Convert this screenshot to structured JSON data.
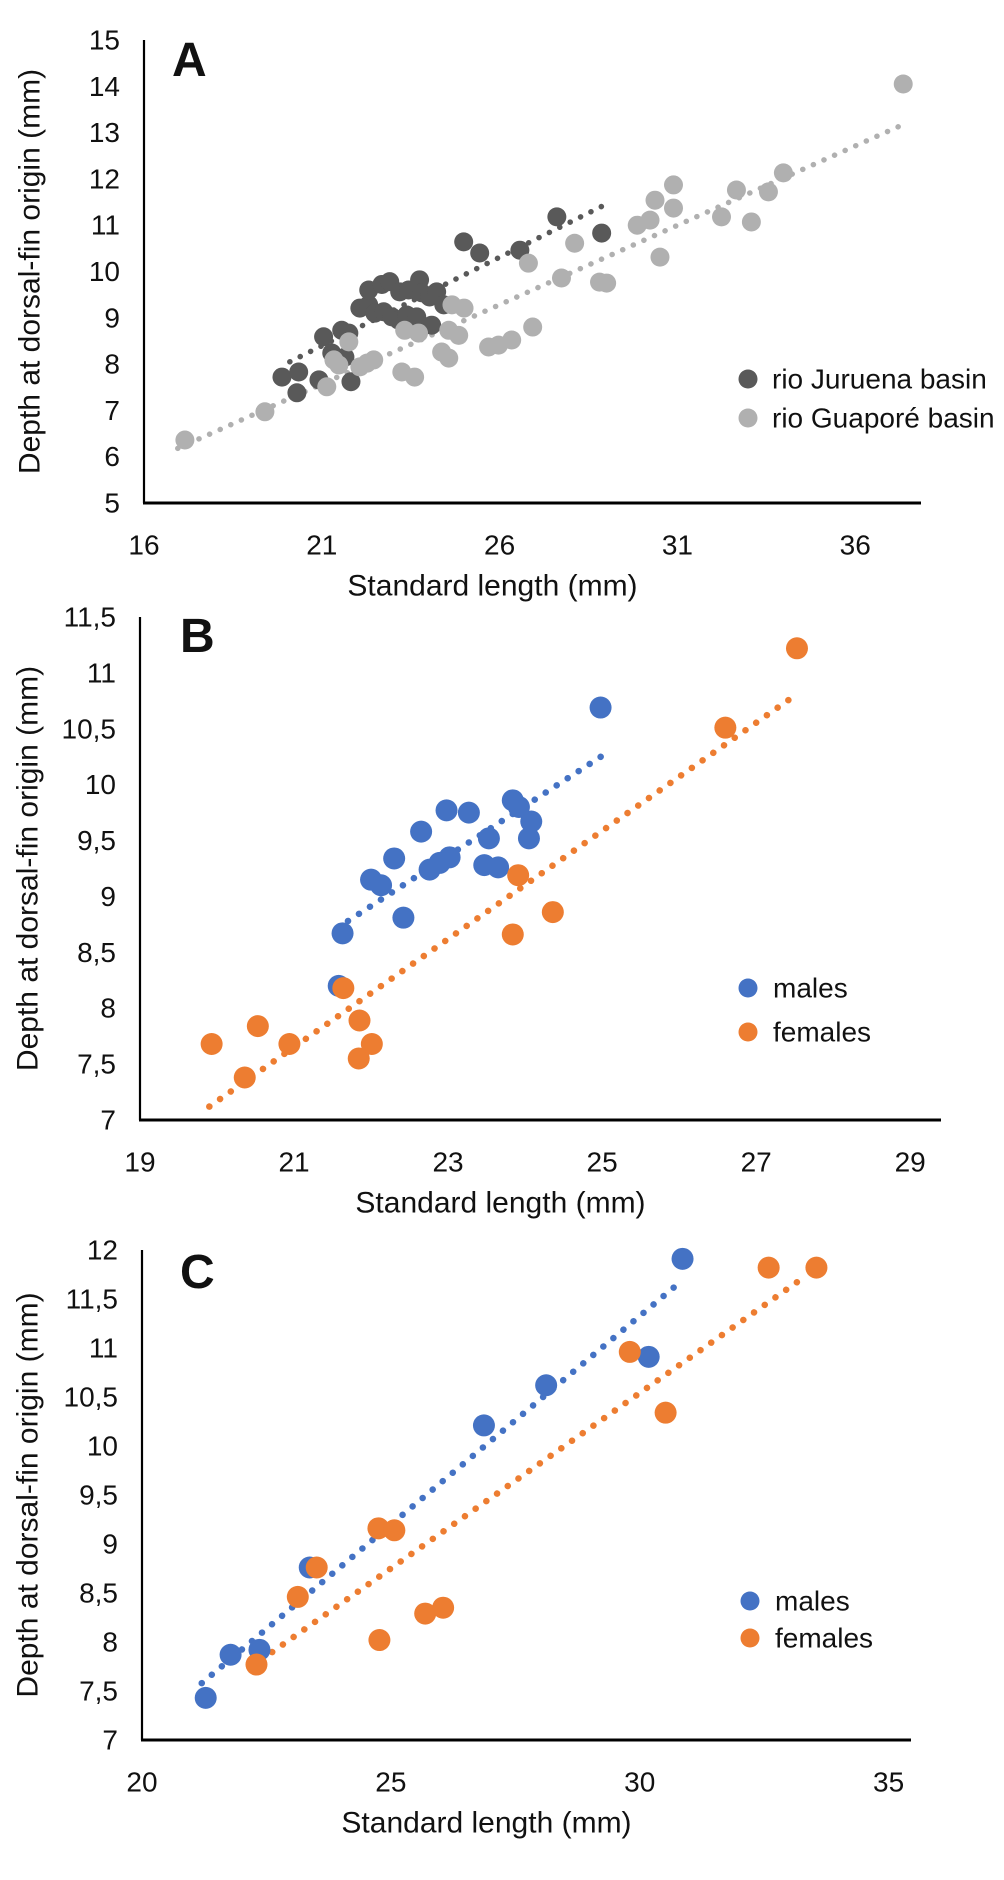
{
  "figure": {
    "background": "#ffffff",
    "axis_color": "#000000",
    "text_color": "#111111"
  },
  "chart_data": [
    {
      "panel": "A",
      "type": "scatter",
      "xlabel": "Standard length (mm)",
      "ylabel": "Depth at dorsal-fin origin (mm)",
      "xlim": [
        16,
        37.85
      ],
      "ylim": [
        5,
        15
      ],
      "x_ticks": [
        {
          "v": 16,
          "label": "16"
        },
        {
          "v": 21,
          "label": "21"
        },
        {
          "v": 26,
          "label": "26"
        },
        {
          "v": 31,
          "label": "31"
        },
        {
          "v": 36,
          "label": "36"
        }
      ],
      "y_ticks": [
        {
          "v": 5,
          "label": "5"
        },
        {
          "v": 6,
          "label": "6"
        },
        {
          "v": 7,
          "label": "7"
        },
        {
          "v": 8,
          "label": "8"
        },
        {
          "v": 9,
          "label": "9"
        },
        {
          "v": 10,
          "label": "10"
        },
        {
          "v": 11,
          "label": "11"
        },
        {
          "v": 12,
          "label": "12"
        },
        {
          "v": 13,
          "label": "13"
        },
        {
          "v": 14,
          "label": "14"
        },
        {
          "v": 15,
          "label": "15"
        }
      ],
      "series": [
        {
          "name": "rio Juruena basin",
          "color": "#595959",
          "points": [
            [
              19.88,
              7.72
            ],
            [
              20.3,
              7.38
            ],
            [
              20.35,
              7.83
            ],
            [
              20.92,
              7.66
            ],
            [
              21.05,
              8.59
            ],
            [
              21.28,
              8.24
            ],
            [
              21.56,
              8.73
            ],
            [
              21.65,
              8.15
            ],
            [
              21.76,
              8.67
            ],
            [
              21.82,
              7.62
            ],
            [
              22.07,
              9.21
            ],
            [
              22.32,
              9.28
            ],
            [
              22.32,
              9.6
            ],
            [
              22.49,
              9.1
            ],
            [
              22.69,
              9.72
            ],
            [
              22.74,
              9.13
            ],
            [
              22.91,
              9.78
            ],
            [
              22.97,
              9.02
            ],
            [
              23.16,
              8.95
            ],
            [
              23.19,
              9.56
            ],
            [
              23.39,
              9.06
            ],
            [
              23.44,
              9.6
            ],
            [
              23.67,
              9.02
            ],
            [
              23.75,
              9.82
            ],
            [
              23.81,
              9.54
            ],
            [
              24.03,
              9.45
            ],
            [
              24.09,
              8.84
            ],
            [
              24.23,
              9.56
            ],
            [
              24.43,
              9.28
            ],
            [
              24.99,
              10.64
            ],
            [
              25.44,
              10.4
            ],
            [
              26.57,
              10.46
            ],
            [
              27.61,
              11.18
            ],
            [
              28.87,
              10.83
            ]
          ],
          "trendline": [
            [
              20.1,
              8.05
            ],
            [
              28.96,
              11.44
            ]
          ]
        },
        {
          "name": "rio Guaporé basin",
          "color": "#b0b0b0",
          "points": [
            [
              17.15,
              6.36
            ],
            [
              19.4,
              6.97
            ],
            [
              21.14,
              7.51
            ],
            [
              21.34,
              8.09
            ],
            [
              21.48,
              7.98
            ],
            [
              21.76,
              8.48
            ],
            [
              22.07,
              7.94
            ],
            [
              22.27,
              8.02
            ],
            [
              22.46,
              8.09
            ],
            [
              23.25,
              7.83
            ],
            [
              23.33,
              8.73
            ],
            [
              23.61,
              7.72
            ],
            [
              23.72,
              8.67
            ],
            [
              24.37,
              8.26
            ],
            [
              24.57,
              8.13
            ],
            [
              24.57,
              8.73
            ],
            [
              24.66,
              9.28
            ],
            [
              24.85,
              8.62
            ],
            [
              25.0,
              9.21
            ],
            [
              25.69,
              8.37
            ],
            [
              25.97,
              8.41
            ],
            [
              26.34,
              8.52
            ],
            [
              26.81,
              10.18
            ],
            [
              26.93,
              8.8
            ],
            [
              27.74,
              9.86
            ],
            [
              28.11,
              10.61
            ],
            [
              28.81,
              9.77
            ],
            [
              29.01,
              9.75
            ],
            [
              29.87,
              11.0
            ],
            [
              30.23,
              11.11
            ],
            [
              30.37,
              11.54
            ],
            [
              30.51,
              10.31
            ],
            [
              30.89,
              11.87
            ],
            [
              30.89,
              11.37
            ],
            [
              32.24,
              11.18
            ],
            [
              32.66,
              11.76
            ],
            [
              33.08,
              11.07
            ],
            [
              33.56,
              11.72
            ],
            [
              33.98,
              12.13
            ],
            [
              37.35,
              14.05
            ]
          ],
          "trendline": [
            [
              16.95,
              6.18
            ],
            [
              37.25,
              13.14
            ]
          ]
        }
      ],
      "legend": [
        "rio Juruena basin",
        "rio Guaporé basin"
      ]
    },
    {
      "panel": "B",
      "type": "scatter",
      "xlabel": "Standard length (mm)",
      "ylabel": "Depth at dorsal-fin origin (mm)",
      "xlim": [
        19,
        29.4
      ],
      "ylim": [
        7,
        11.5
      ],
      "x_ticks": [
        {
          "v": 19,
          "label": "19"
        },
        {
          "v": 21,
          "label": "21"
        },
        {
          "v": 23,
          "label": "23"
        },
        {
          "v": 25,
          "label": "25"
        },
        {
          "v": 27,
          "label": "27"
        },
        {
          "v": 29,
          "label": "29"
        }
      ],
      "y_ticks": [
        {
          "v": 7,
          "label": "7"
        },
        {
          "v": 7.5,
          "label": "7,5"
        },
        {
          "v": 8,
          "label": "8"
        },
        {
          "v": 8.5,
          "label": "8,5"
        },
        {
          "v": 9,
          "label": "9"
        },
        {
          "v": 9.5,
          "label": "9,5"
        },
        {
          "v": 10,
          "label": "10"
        },
        {
          "v": 10.5,
          "label": "10,5"
        },
        {
          "v": 11,
          "label": "11"
        },
        {
          "v": 11.5,
          "label": "11,5"
        }
      ],
      "series": [
        {
          "name": "males",
          "color": "#4472c4",
          "points": [
            [
              21.58,
              8.2
            ],
            [
              21.63,
              8.67
            ],
            [
              22.0,
              9.15
            ],
            [
              22.13,
              9.1
            ],
            [
              22.3,
              9.34
            ],
            [
              22.42,
              8.81
            ],
            [
              22.65,
              9.58
            ],
            [
              22.76,
              9.24
            ],
            [
              22.89,
              9.3
            ],
            [
              22.98,
              9.77
            ],
            [
              23.02,
              9.35
            ],
            [
              23.27,
              9.75
            ],
            [
              23.47,
              9.28
            ],
            [
              23.53,
              9.52
            ],
            [
              23.65,
              9.26
            ],
            [
              23.84,
              9.86
            ],
            [
              23.92,
              9.8
            ],
            [
              24.05,
              9.52
            ],
            [
              24.08,
              9.67
            ],
            [
              24.98,
              10.69
            ]
          ],
          "trendline": [
            [
              21.7,
              8.78
            ],
            [
              25.05,
              10.28
            ]
          ]
        },
        {
          "name": "females",
          "color": "#ed7d31",
          "points": [
            [
              19.93,
              7.68
            ],
            [
              20.36,
              7.38
            ],
            [
              20.53,
              7.84
            ],
            [
              20.94,
              7.68
            ],
            [
              21.64,
              8.18
            ],
            [
              21.84,
              7.55
            ],
            [
              21.85,
              7.89
            ],
            [
              22.01,
              7.68
            ],
            [
              23.84,
              8.66
            ],
            [
              23.91,
              9.19
            ],
            [
              24.36,
              8.86
            ],
            [
              26.6,
              10.51
            ],
            [
              27.53,
              11.22
            ]
          ],
          "trendline": [
            [
              19.9,
              7.12
            ],
            [
              27.55,
              10.82
            ]
          ]
        }
      ],
      "legend": [
        "males",
        "females"
      ]
    },
    {
      "panel": "C",
      "type": "scatter",
      "xlabel": "Standard length (mm)",
      "ylabel": "Depth at dorsal-fin origin (mm)",
      "xlim": [
        20,
        35.45
      ],
      "ylim": [
        7,
        12
      ],
      "x_ticks": [
        {
          "v": 20,
          "label": "20"
        },
        {
          "v": 25,
          "label": "25"
        },
        {
          "v": 30,
          "label": "30"
        },
        {
          "v": 35,
          "label": "35"
        }
      ],
      "y_ticks": [
        {
          "v": 7,
          "label": "7"
        },
        {
          "v": 7.5,
          "label": "7,5"
        },
        {
          "v": 8,
          "label": "8"
        },
        {
          "v": 8.5,
          "label": "8,5"
        },
        {
          "v": 9,
          "label": "9"
        },
        {
          "v": 9.5,
          "label": "9,5"
        },
        {
          "v": 10,
          "label": "10"
        },
        {
          "v": 10.5,
          "label": "10,5"
        },
        {
          "v": 11,
          "label": "11"
        },
        {
          "v": 11.5,
          "label": "11,5"
        },
        {
          "v": 12,
          "label": "12"
        }
      ],
      "series": [
        {
          "name": "males",
          "color": "#4472c4",
          "points": [
            [
              21.28,
              7.43
            ],
            [
              21.78,
              7.87
            ],
            [
              22.36,
              7.92
            ],
            [
              23.37,
              8.76
            ],
            [
              26.87,
              10.21
            ],
            [
              28.12,
              10.62
            ],
            [
              30.18,
              10.91
            ],
            [
              30.86,
              11.91
            ]
          ],
          "trendline": [
            [
              21.2,
              7.58
            ],
            [
              30.76,
              11.65
            ]
          ]
        },
        {
          "name": "females",
          "color": "#ed7d31",
          "points": [
            [
              22.3,
              7.77
            ],
            [
              23.13,
              8.46
            ],
            [
              23.51,
              8.76
            ],
            [
              24.75,
              9.16
            ],
            [
              24.77,
              8.02
            ],
            [
              25.07,
              9.14
            ],
            [
              25.69,
              8.29
            ],
            [
              26.05,
              8.35
            ],
            [
              29.8,
              10.96
            ],
            [
              30.52,
              10.34
            ],
            [
              32.59,
              11.82
            ],
            [
              33.55,
              11.82
            ]
          ],
          "trendline": [
            [
              22.4,
              7.82
            ],
            [
              33.35,
              11.74
            ]
          ]
        }
      ],
      "legend": [
        "males",
        "females"
      ]
    }
  ]
}
